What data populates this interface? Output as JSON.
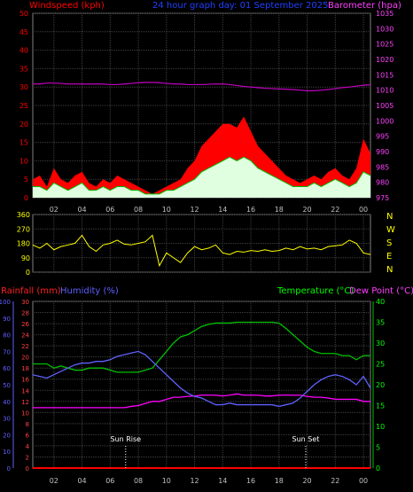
{
  "header": {
    "left_label": "Windspeed (kph)",
    "center_label": "24 hour graph day: 01 September 2025",
    "right_label": "Barometer (hpa)"
  },
  "time_ticks": [
    "02",
    "04",
    "06",
    "08",
    "10",
    "12",
    "14",
    "16",
    "18",
    "20",
    "22",
    "00"
  ],
  "wind_dir_letters": [
    "N",
    "W",
    "S",
    "E",
    "N"
  ],
  "lower": {
    "rain_label": "Rainfall (mm)",
    "humidity_label": "Humidity (%)",
    "temp_label": "Temperature (°C)",
    "dew_label": "Dew Point (°C)",
    "sunrise_label": "Sun Rise",
    "sunset_label": "Sun Set"
  },
  "colors": {
    "wind_gust": "#ff0000",
    "wind_avg": "#00c000",
    "wind_fill": "#e0ffe0",
    "barometer": "#c000c0",
    "direction": "#ffff00",
    "humidity": "#6060ff",
    "temperature": "#00c000",
    "dew_point": "#ff00ff",
    "rain": "#ff0000",
    "grid": "#404040"
  },
  "chart_data": [
    {
      "type": "area",
      "title": "24 hour graph day: 01 September 2025",
      "x_unit": "hour",
      "xlim": [
        0.5,
        24.5
      ],
      "left_axis": {
        "label": "Windspeed (kph)",
        "ticks": [
          0,
          5,
          10,
          15,
          20,
          25,
          30,
          35,
          40,
          45,
          50
        ],
        "ylim": [
          0,
          50
        ]
      },
      "right_axis": {
        "label": "Barometer (hpa)",
        "ticks": [
          975,
          980,
          985,
          990,
          995,
          1000,
          1005,
          1010,
          1015,
          1020,
          1025,
          1030,
          1035
        ],
        "ylim": [
          975,
          1035
        ]
      },
      "x": [
        0.5,
        1,
        1.5,
        2,
        2.5,
        3,
        3.5,
        4,
        4.5,
        5,
        5.5,
        6,
        6.5,
        7,
        7.5,
        8,
        8.5,
        9,
        9.5,
        10,
        10.5,
        11,
        11.5,
        12,
        12.5,
        13,
        13.5,
        14,
        14.5,
        15,
        15.5,
        16,
        16.5,
        17,
        17.5,
        18,
        18.5,
        19,
        19.5,
        20,
        20.5,
        21,
        21.5,
        22,
        22.5,
        23,
        23.5,
        24,
        24.5
      ],
      "series": [
        {
          "name": "Windspeed (kph)",
          "role": "gust",
          "values": [
            5,
            6,
            3,
            8,
            5,
            4,
            6,
            7,
            4,
            3,
            5,
            4,
            6,
            5,
            4,
            3,
            2,
            1,
            2,
            3,
            4,
            5,
            8,
            10,
            14,
            16,
            18,
            20,
            20,
            19,
            22,
            18,
            14,
            12,
            10,
            8,
            6,
            5,
            4,
            5,
            6,
            5,
            7,
            8,
            6,
            5,
            8,
            16,
            12
          ]
        },
        {
          "name": "",
          "role": "average",
          "values": [
            3,
            3,
            2,
            4,
            3,
            2,
            3,
            4,
            2,
            2,
            3,
            2,
            3,
            3,
            2,
            2,
            1,
            1,
            1,
            2,
            2,
            3,
            4,
            5,
            7,
            8,
            9,
            10,
            11,
            10,
            11,
            10,
            8,
            7,
            6,
            5,
            4,
            3,
            3,
            3,
            4,
            3,
            4,
            5,
            4,
            3,
            4,
            7,
            6
          ]
        },
        {
          "name": "Barometer (hpa)",
          "axis": "right",
          "values": [
            1012,
            1012,
            1012.3,
            1012.3,
            1012.2,
            1012,
            1012,
            1012,
            1012,
            1012,
            1012,
            1011.8,
            1011.8,
            1012,
            1012.2,
            1012.4,
            1012.5,
            1012.5,
            1012.4,
            1012.2,
            1012,
            1012,
            1011.8,
            1011.8,
            1011.8,
            1011.9,
            1012,
            1012,
            1011.8,
            1011.5,
            1011.2,
            1011,
            1010.8,
            1010.6,
            1010.5,
            1010.4,
            1010.3,
            1010.2,
            1010,
            1009.8,
            1009.8,
            1010,
            1010.2,
            1010.5,
            1010.8,
            1011,
            1011.3,
            1011.6,
            1011.7
          ]
        }
      ]
    },
    {
      "type": "line",
      "xlim": [
        0.5,
        24.5
      ],
      "left_axis": {
        "ticks": [
          0,
          90,
          180,
          270,
          360
        ],
        "ylim": [
          0,
          360
        ]
      },
      "right_axis": {
        "ticks": [
          "N",
          "W",
          "S",
          "E",
          "N"
        ]
      },
      "x": [
        0.5,
        1,
        1.5,
        2,
        2.5,
        3,
        3.5,
        4,
        4.5,
        5,
        5.5,
        6,
        6.5,
        7,
        7.5,
        8,
        8.5,
        9,
        9.5,
        10,
        10.5,
        11,
        11.5,
        12,
        12.5,
        13,
        13.5,
        14,
        14.5,
        15,
        15.5,
        16,
        16.5,
        17,
        17.5,
        18,
        18.5,
        19,
        19.5,
        20,
        20.5,
        21,
        21.5,
        22,
        22.5,
        23,
        23.5,
        24,
        24.5
      ],
      "series": [
        {
          "name": "",
          "values": [
            170,
            150,
            180,
            140,
            160,
            170,
            180,
            230,
            160,
            130,
            170,
            180,
            200,
            175,
            170,
            180,
            190,
            230,
            40,
            120,
            90,
            60,
            120,
            160,
            140,
            150,
            170,
            120,
            110,
            130,
            125,
            135,
            130,
            140,
            130,
            135,
            150,
            140,
            160,
            145,
            150,
            140,
            160,
            165,
            170,
            200,
            180,
            120,
            110
          ]
        }
      ]
    },
    {
      "type": "line",
      "xlim": [
        0.5,
        24.5
      ],
      "humidity_axis": {
        "label": "Humidity (%)",
        "ticks": [
          0,
          10,
          20,
          30,
          40,
          50,
          60,
          70,
          80,
          90,
          100
        ],
        "ylim": [
          0,
          100
        ]
      },
      "rain_axis": {
        "label": "Rainfall (mm)",
        "ticks": [
          0,
          2,
          4,
          6,
          8,
          10,
          12,
          14,
          16,
          18,
          20,
          22,
          24,
          26,
          28,
          30
        ],
        "ylim": [
          0,
          30
        ]
      },
      "temp_axis": {
        "label": "Temperature (°C)",
        "ticks": [
          0,
          5,
          10,
          15,
          20,
          25,
          30,
          35,
          40
        ],
        "ylim": [
          0,
          40
        ]
      },
      "annotations": [
        {
          "label": "Sun Rise",
          "x": 7.1
        },
        {
          "label": "Sun Set",
          "x": 19.9
        }
      ],
      "x": [
        0.5,
        1,
        1.5,
        2,
        2.5,
        3,
        3.5,
        4,
        4.5,
        5,
        5.5,
        6,
        6.5,
        7,
        7.5,
        8,
        8.5,
        9,
        9.5,
        10,
        10.5,
        11,
        11.5,
        12,
        12.5,
        13,
        13.5,
        14,
        14.5,
        15,
        15.5,
        16,
        16.5,
        17,
        17.5,
        18,
        18.5,
        19,
        19.5,
        20,
        20.5,
        21,
        21.5,
        22,
        22.5,
        23,
        23.5,
        24,
        24.5
      ],
      "series": [
        {
          "name": "Humidity (%)",
          "values": [
            56,
            55,
            54,
            56,
            58,
            60,
            62,
            63,
            63,
            64,
            64,
            65,
            67,
            68,
            69,
            70,
            68,
            64,
            60,
            56,
            52,
            48,
            45,
            43,
            42,
            40,
            38,
            38,
            39,
            38,
            38,
            38,
            38,
            38,
            38,
            37,
            38,
            39,
            42,
            46,
            50,
            53,
            55,
            56,
            55,
            53,
            50,
            55,
            48
          ]
        },
        {
          "name": "Temperature (°C)",
          "values": [
            25,
            25,
            25,
            24,
            24.5,
            24,
            23.5,
            23.5,
            24,
            24,
            24,
            23.5,
            23,
            23,
            23,
            23,
            23.5,
            24,
            26,
            28,
            30,
            31.5,
            32,
            33,
            34,
            34.5,
            34.8,
            34.8,
            34.8,
            35,
            35,
            35,
            35,
            35,
            35,
            34.8,
            33.5,
            32,
            30.5,
            29,
            28,
            27.5,
            27.5,
            27.5,
            27,
            27,
            26,
            27,
            27
          ]
        },
        {
          "name": "Dew Point (°C)",
          "values": [
            14.5,
            14.5,
            14.5,
            14.5,
            14.5,
            14.5,
            14.5,
            14.5,
            14.5,
            14.5,
            14.5,
            14.5,
            14.5,
            14.5,
            14.8,
            15,
            15.5,
            16,
            16,
            16.5,
            17,
            17,
            17.2,
            17.3,
            17.5,
            17.5,
            17.5,
            17.3,
            17.5,
            17.8,
            17.5,
            17.5,
            17.5,
            17.3,
            17.3,
            17.5,
            17.5,
            17.5,
            17.5,
            17.2,
            17,
            17,
            16.8,
            16.5,
            16.5,
            16.5,
            16.5,
            16,
            16
          ]
        },
        {
          "name": "Rainfall (mm)",
          "values": [
            0,
            0,
            0,
            0,
            0,
            0,
            0,
            0,
            0,
            0,
            0,
            0,
            0,
            0,
            0,
            0,
            0,
            0,
            0,
            0,
            0,
            0,
            0,
            0,
            0,
            0,
            0,
            0,
            0,
            0,
            0,
            0,
            0,
            0,
            0,
            0,
            0,
            0,
            0,
            0,
            0,
            0,
            0,
            0,
            0,
            0,
            0,
            0,
            0
          ]
        }
      ]
    }
  ]
}
